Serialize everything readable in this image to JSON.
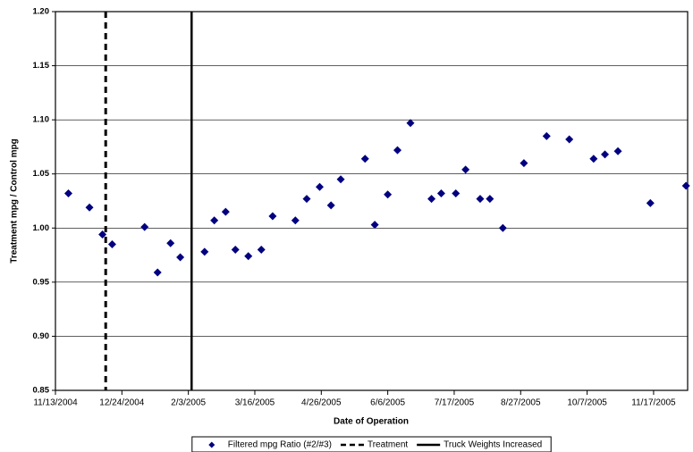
{
  "chart_data": {
    "type": "scatter",
    "x_label": "Date of Operation",
    "y_label": "Treatment mpg / Control mpg",
    "x": [
      "2004-11-21",
      "2004-12-04",
      "2004-12-12",
      "2004-12-18",
      "2005-01-07",
      "2005-01-15",
      "2005-01-23",
      "2005-01-29",
      "2005-02-13",
      "2005-02-19",
      "2005-02-26",
      "2005-03-04",
      "2005-03-12",
      "2005-03-20",
      "2005-03-27",
      "2005-04-10",
      "2005-04-17",
      "2005-04-25",
      "2005-05-02",
      "2005-05-08",
      "2005-05-23",
      "2005-05-29",
      "2005-06-06",
      "2005-06-12",
      "2005-06-20",
      "2005-07-03",
      "2005-07-09",
      "2005-07-18",
      "2005-07-24",
      "2005-08-02",
      "2005-08-08",
      "2005-08-16",
      "2005-08-29",
      "2005-09-12",
      "2005-09-26",
      "2005-10-11",
      "2005-10-18",
      "2005-10-26",
      "2005-11-15",
      "2005-12-07"
    ],
    "series": [
      {
        "name": "Filtered mpg Ratio (#2/#3)",
        "color": "#000080",
        "marker": "diamond",
        "values": [
          1.032,
          1.019,
          0.994,
          0.985,
          1.001,
          0.959,
          0.986,
          0.973,
          0.978,
          1.007,
          1.015,
          0.98,
          0.974,
          0.98,
          1.011,
          1.007,
          1.027,
          1.038,
          1.021,
          1.045,
          1.064,
          1.003,
          1.031,
          1.072,
          1.097,
          1.027,
          1.032,
          1.032,
          1.054,
          1.027,
          1.027,
          1.0,
          1.06,
          1.085,
          1.082,
          1.064,
          1.068,
          1.071,
          1.023,
          1.039
        ]
      }
    ],
    "reference_lines": [
      {
        "name": "Treatment",
        "x": "2004-12-14",
        "style": "dashed",
        "color": "#000000"
      },
      {
        "name": "Truck Weights Increased",
        "x": "2005-02-05",
        "style": "solid",
        "color": "#000000"
      }
    ],
    "xlim": [
      "2004-11-13",
      "2005-12-08"
    ],
    "xticks": [
      {
        "value": "2004-11-13",
        "label": "11/13/2004"
      },
      {
        "value": "2004-12-24",
        "label": "12/24/2004"
      },
      {
        "value": "2005-02-03",
        "label": "2/3/2005"
      },
      {
        "value": "2005-03-16",
        "label": "3/16/2005"
      },
      {
        "value": "2005-04-26",
        "label": "4/26/2005"
      },
      {
        "value": "2005-06-06",
        "label": "6/6/2005"
      },
      {
        "value": "2005-07-17",
        "label": "7/17/2005"
      },
      {
        "value": "2005-08-27",
        "label": "8/27/2005"
      },
      {
        "value": "2005-10-07",
        "label": "10/7/2005"
      },
      {
        "value": "2005-11-17",
        "label": "11/17/2005"
      }
    ],
    "ylim": [
      0.85,
      1.2
    ],
    "yticks": [
      0.85,
      {
        "value": 0.9,
        "label": "0.90"
      },
      0.95,
      {
        "value": 1.0,
        "label": "1.00"
      },
      1.05,
      {
        "value": 1.1,
        "label": "1.10"
      },
      1.15,
      {
        "value": 1.2,
        "label": "1.20"
      }
    ],
    "grid": true,
    "legend": "bottom"
  }
}
